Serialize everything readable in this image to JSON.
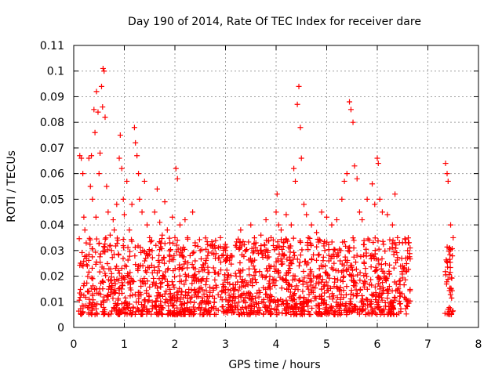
{
  "chart_data": {
    "type": "scatter",
    "title": "Day 190 of 2014, Rate Of TEC Index for receiver dare",
    "xlabel": "GPS time / hours",
    "ylabel": "ROTI / TECUs",
    "xlim": [
      0,
      8
    ],
    "ylim": [
      0,
      0.11
    ],
    "x_ticks": [
      "0",
      "1",
      "2",
      "3",
      "4",
      "5",
      "6",
      "7",
      "8"
    ],
    "y_ticks": [
      "0",
      "0.01",
      "0.02",
      "0.03",
      "0.04",
      "0.05",
      "0.06",
      "0.07",
      "0.08",
      "0.09",
      "0.1",
      "0.11"
    ],
    "grid": true,
    "marker": "+",
    "color": "#ff0000",
    "series": [
      {
        "name": "ROTI",
        "points": [
          [
            0.12,
            0.067
          ],
          [
            0.15,
            0.066
          ],
          [
            0.18,
            0.06
          ],
          [
            0.2,
            0.043
          ],
          [
            0.22,
            0.038
          ],
          [
            0.25,
            0.027
          ],
          [
            0.27,
            0.024
          ],
          [
            0.3,
            0.066
          ],
          [
            0.33,
            0.055
          ],
          [
            0.35,
            0.067
          ],
          [
            0.37,
            0.05
          ],
          [
            0.4,
            0.085
          ],
          [
            0.42,
            0.076
          ],
          [
            0.44,
            0.043
          ],
          [
            0.45,
            0.092
          ],
          [
            0.48,
            0.084
          ],
          [
            0.5,
            0.06
          ],
          [
            0.52,
            0.068
          ],
          [
            0.55,
            0.094
          ],
          [
            0.57,
            0.086
          ],
          [
            0.58,
            0.101
          ],
          [
            0.6,
            0.1
          ],
          [
            0.62,
            0.082
          ],
          [
            0.65,
            0.055
          ],
          [
            0.68,
            0.045
          ],
          [
            0.72,
            0.036
          ],
          [
            0.75,
            0.03
          ],
          [
            0.78,
            0.042
          ],
          [
            0.8,
            0.038
          ],
          [
            0.85,
            0.048
          ],
          [
            0.9,
            0.066
          ],
          [
            0.92,
            0.075
          ],
          [
            0.95,
            0.062
          ],
          [
            0.98,
            0.05
          ],
          [
            1.0,
            0.044
          ],
          [
            1.05,
            0.057
          ],
          [
            1.1,
            0.038
          ],
          [
            1.15,
            0.048
          ],
          [
            1.2,
            0.078
          ],
          [
            1.22,
            0.072
          ],
          [
            1.25,
            0.067
          ],
          [
            1.28,
            0.06
          ],
          [
            1.3,
            0.05
          ],
          [
            1.35,
            0.045
          ],
          [
            1.4,
            0.057
          ],
          [
            1.45,
            0.04
          ],
          [
            1.5,
            0.035
          ],
          [
            1.55,
            0.03
          ],
          [
            1.6,
            0.045
          ],
          [
            1.65,
            0.054
          ],
          [
            1.7,
            0.041
          ],
          [
            1.75,
            0.036
          ],
          [
            1.8,
            0.049
          ],
          [
            1.85,
            0.038
          ],
          [
            1.9,
            0.033
          ],
          [
            1.95,
            0.043
          ],
          [
            2.0,
            0.035
          ],
          [
            2.02,
            0.062
          ],
          [
            2.05,
            0.058
          ],
          [
            2.1,
            0.04
          ],
          [
            2.15,
            0.03
          ],
          [
            2.2,
            0.042
          ],
          [
            2.25,
            0.035
          ],
          [
            2.3,
            0.028
          ],
          [
            2.35,
            0.045
          ],
          [
            2.4,
            0.033
          ],
          [
            2.5,
            0.03
          ],
          [
            2.6,
            0.025
          ],
          [
            2.7,
            0.032
          ],
          [
            2.8,
            0.027
          ],
          [
            2.9,
            0.035
          ],
          [
            3.0,
            0.03
          ],
          [
            3.1,
            0.028
          ],
          [
            3.2,
            0.032
          ],
          [
            3.3,
            0.038
          ],
          [
            3.4,
            0.03
          ],
          [
            3.5,
            0.04
          ],
          [
            3.6,
            0.033
          ],
          [
            3.7,
            0.036
          ],
          [
            3.8,
            0.042
          ],
          [
            3.9,
            0.035
          ],
          [
            4.0,
            0.045
          ],
          [
            4.02,
            0.052
          ],
          [
            4.05,
            0.04
          ],
          [
            4.1,
            0.038
          ],
          [
            4.2,
            0.044
          ],
          [
            4.3,
            0.04
          ],
          [
            4.35,
            0.062
          ],
          [
            4.38,
            0.057
          ],
          [
            4.42,
            0.087
          ],
          [
            4.45,
            0.094
          ],
          [
            4.48,
            0.078
          ],
          [
            4.5,
            0.066
          ],
          [
            4.55,
            0.048
          ],
          [
            4.6,
            0.044
          ],
          [
            4.7,
            0.04
          ],
          [
            4.8,
            0.037
          ],
          [
            4.9,
            0.045
          ],
          [
            5.0,
            0.043
          ],
          [
            5.1,
            0.04
          ],
          [
            5.2,
            0.042
          ],
          [
            5.3,
            0.05
          ],
          [
            5.35,
            0.057
          ],
          [
            5.4,
            0.06
          ],
          [
            5.45,
            0.088
          ],
          [
            5.48,
            0.085
          ],
          [
            5.52,
            0.08
          ],
          [
            5.55,
            0.063
          ],
          [
            5.6,
            0.058
          ],
          [
            5.65,
            0.045
          ],
          [
            5.7,
            0.042
          ],
          [
            5.8,
            0.05
          ],
          [
            5.9,
            0.056
          ],
          [
            5.95,
            0.048
          ],
          [
            6.0,
            0.066
          ],
          [
            6.02,
            0.064
          ],
          [
            6.05,
            0.05
          ],
          [
            6.1,
            0.045
          ],
          [
            6.2,
            0.044
          ],
          [
            6.3,
            0.04
          ],
          [
            6.35,
            0.052
          ],
          [
            6.4,
            0.035
          ],
          [
            6.5,
            0.033
          ],
          [
            6.6,
            0.03
          ],
          [
            7.35,
            0.064
          ],
          [
            7.38,
            0.06
          ],
          [
            7.4,
            0.057
          ],
          [
            7.45,
            0.04
          ],
          [
            7.5,
            0.035
          ]
        ],
        "dense_band": {
          "x_ranges": [
            [
              0.1,
              6.65
            ],
            [
              7.33,
              7.5
            ]
          ],
          "y_range": [
            0.005,
            0.035
          ]
        }
      }
    ]
  }
}
